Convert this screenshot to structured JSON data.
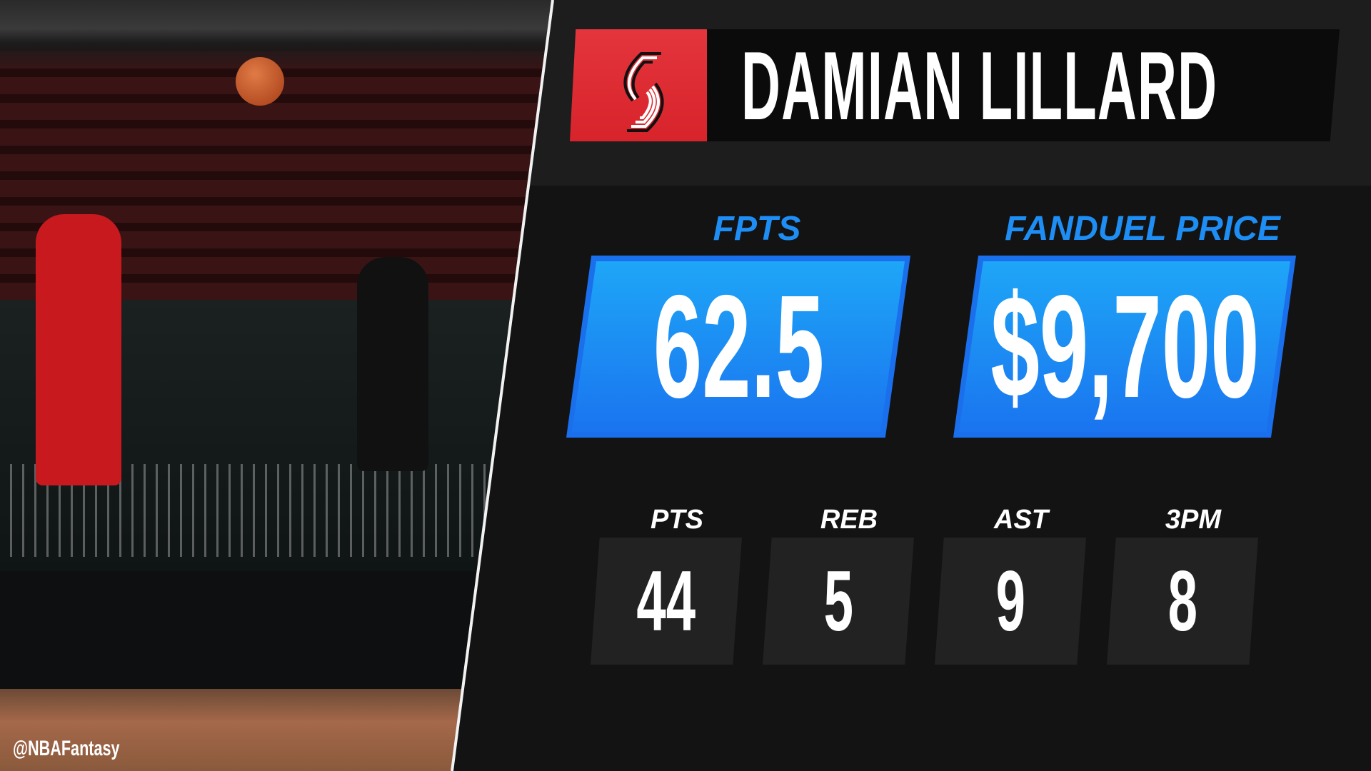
{
  "player": {
    "name": "DAMIAN LILLARD",
    "team_logo": "portland-trail-blazers-pinwheel-logo"
  },
  "highlights": [
    {
      "label": "FPTS",
      "value": "62.5"
    },
    {
      "label": "FANDUEL PRICE",
      "value": "$9,700"
    }
  ],
  "stats": [
    {
      "label": "PTS",
      "value": "44"
    },
    {
      "label": "REB",
      "value": "5"
    },
    {
      "label": "AST",
      "value": "9"
    },
    {
      "label": "3PM",
      "value": "8"
    }
  ],
  "watermark": "@NBAFantasy",
  "colors": {
    "accent_blue": "#1e8ef5",
    "team_red": "#d8232b",
    "background": "#131313"
  }
}
